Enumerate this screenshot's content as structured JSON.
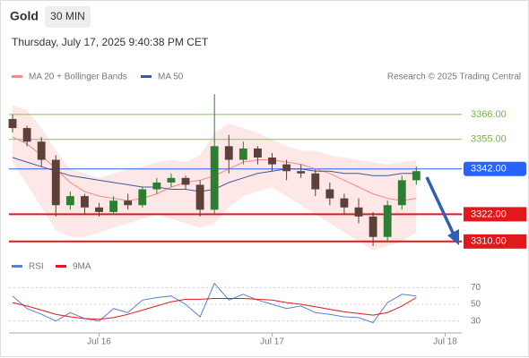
{
  "chart_data": [
    {
      "type": "candlestick",
      "title": "Gold",
      "timeframe": "30 MIN",
      "subtitle": "Thursday, July 17, 2025 9:40:38 PM CET",
      "source": "Research © 2025 Trading Central",
      "x": [
        -12,
        -10,
        -8,
        -6,
        -4,
        -2,
        0,
        2,
        4,
        6,
        8,
        10,
        12,
        14,
        16,
        18,
        20,
        22,
        24,
        26,
        28,
        30,
        32,
        34,
        36,
        38,
        40,
        42,
        44
      ],
      "open": [
        3364,
        3360,
        3354,
        3346,
        3326,
        3330,
        3325,
        3323,
        3328,
        3326,
        3333,
        3336,
        3338,
        3335,
        3324,
        3352,
        3346,
        3351,
        3347,
        3344,
        3341,
        3340,
        3333,
        3329,
        3325,
        3321,
        3312,
        3326,
        3337
      ],
      "high": [
        3366,
        3361,
        3356,
        3348,
        3332,
        3331,
        3327,
        3330,
        3331,
        3334,
        3338,
        3340,
        3339,
        3337,
        3375,
        3357,
        3354,
        3352,
        3349,
        3346,
        3344,
        3342,
        3336,
        3331,
        3329,
        3323,
        3328,
        3339,
        3343
      ],
      "low": [
        3358,
        3352,
        3343,
        3321,
        3324,
        3322,
        3321,
        3322,
        3324,
        3325,
        3331,
        3334,
        3333,
        3321,
        3322,
        3340,
        3344,
        3344,
        3341,
        3337,
        3338,
        3330,
        3326,
        3322,
        3318,
        3308,
        3310,
        3324,
        3335
      ],
      "close": [
        3360,
        3354,
        3346,
        3326,
        3330,
        3325,
        3323,
        3328,
        3326,
        3333,
        3336,
        3338,
        3335,
        3324,
        3352,
        3346,
        3351,
        3347,
        3344,
        3341,
        3340,
        3333,
        3329,
        3325,
        3321,
        3312,
        3326,
        3337,
        3341
      ],
      "up_color": "#2e7d32",
      "down_color": "#5d4037",
      "series": [
        {
          "name": "MA 20 + Bollinger Bands",
          "color": "#f28b82",
          "values": [
            3356,
            3353,
            3348,
            3342,
            3336,
            3332,
            3330,
            3329,
            3328,
            3329,
            3331,
            3334,
            3336,
            3337,
            3339,
            3342,
            3345,
            3346,
            3346,
            3345,
            3344,
            3342,
            3340,
            3337,
            3334,
            3331,
            3329,
            3328,
            3329
          ]
        },
        {
          "name": "MA 50",
          "color": "#3d5a99",
          "values": [
            3347,
            3345,
            3343,
            3341,
            3339,
            3338,
            3337,
            3336,
            3335,
            3334,
            3334,
            3333,
            3333,
            3332,
            3333,
            3336,
            3338,
            3340,
            3341,
            3342,
            3342,
            3341,
            3341,
            3340,
            3340,
            3339,
            3339,
            3340,
            3340
          ]
        }
      ],
      "bollinger": {
        "color": "#fde2e1",
        "upper": [
          3370,
          3368,
          3360,
          3350,
          3342,
          3340,
          3338,
          3340,
          3342,
          3343,
          3345,
          3346,
          3345,
          3348,
          3358,
          3362,
          3360,
          3358,
          3355,
          3352,
          3350,
          3350,
          3348,
          3347,
          3346,
          3345,
          3344,
          3345,
          3346
        ],
        "lower": [
          3345,
          3335,
          3325,
          3315,
          3312,
          3312,
          3314,
          3316,
          3318,
          3320,
          3322,
          3320,
          3318,
          3316,
          3318,
          3325,
          3330,
          3332,
          3334,
          3330,
          3326,
          3322,
          3318,
          3314,
          3310,
          3306,
          3308,
          3310,
          3314
        ]
      },
      "levels": [
        {
          "value": 3366,
          "label": "3366.00",
          "color": "#8bc34a"
        },
        {
          "value": 3355,
          "label": "3355.00",
          "color": "#8bc34a"
        },
        {
          "value": 3342,
          "label": "3342.00",
          "color": "#2962ff"
        },
        {
          "value": 3322,
          "label": "3322.00",
          "color": "#e0191c"
        },
        {
          "value": 3310,
          "label": "3310.00",
          "color": "#e0191c"
        }
      ],
      "xlim": [
        -12.5,
        50.3
      ],
      "ylim": [
        3304,
        3377
      ]
    },
    {
      "type": "line",
      "x": [
        -12,
        -10,
        -8,
        -6,
        -4,
        -2,
        0,
        2,
        4,
        6,
        8,
        10,
        12,
        14,
        16,
        18,
        20,
        22,
        24,
        26,
        28,
        30,
        32,
        34,
        36,
        38,
        40,
        42,
        44
      ],
      "series": [
        {
          "name": "RSI",
          "color": "#5b7fd6",
          "values": [
            60,
            45,
            38,
            30,
            40,
            33,
            30,
            45,
            40,
            55,
            58,
            60,
            50,
            35,
            75,
            55,
            62,
            55,
            50,
            45,
            48,
            40,
            38,
            35,
            34,
            28,
            52,
            62,
            60
          ]
        },
        {
          "name": "9MA",
          "color": "#e0191c",
          "values": [
            52,
            48,
            43,
            38,
            35,
            33,
            32,
            34,
            38,
            43,
            48,
            53,
            56,
            56,
            57,
            57,
            57,
            56,
            55,
            52,
            50,
            47,
            44,
            41,
            39,
            37,
            40,
            48,
            58
          ]
        }
      ],
      "xlim": [
        -12.5,
        50.3
      ],
      "ylim": [
        20,
        80
      ],
      "yticks": [
        30,
        50,
        70
      ],
      "xticks": [
        {
          "value": 0,
          "label": "Jul 16"
        },
        {
          "value": 24,
          "label": "Jul 17"
        },
        {
          "value": 48,
          "label": "Jul 18"
        }
      ]
    }
  ]
}
